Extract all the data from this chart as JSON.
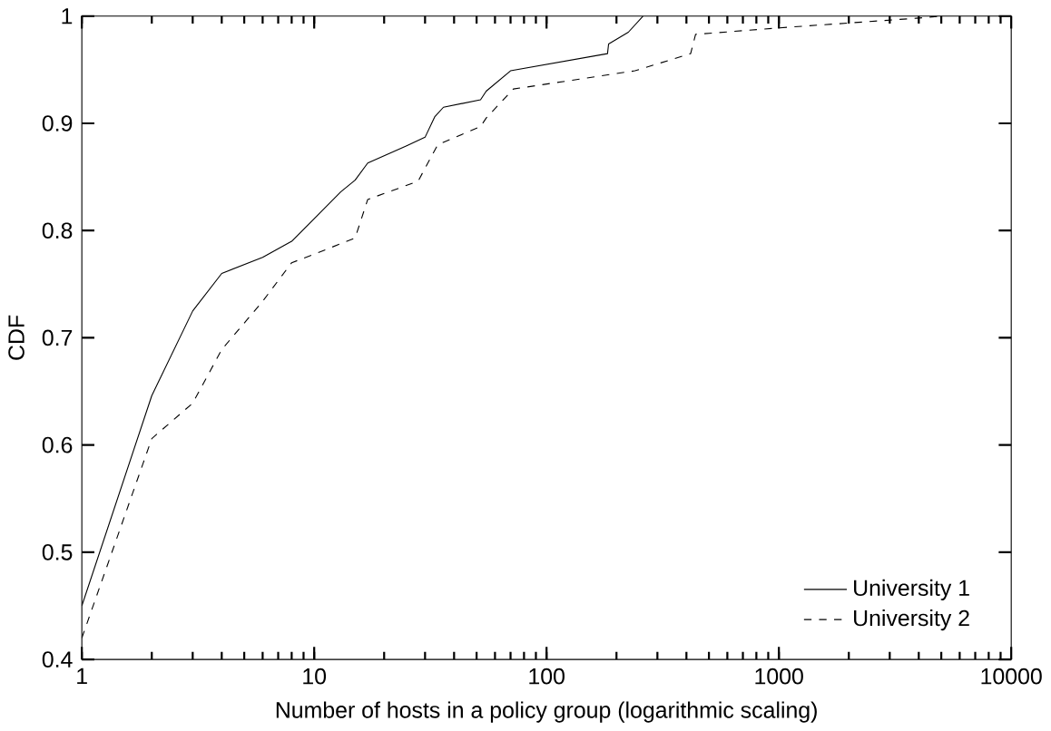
{
  "chart_data": {
    "type": "line",
    "xlabel": "Number of hosts in a policy group (logarithmic scaling)",
    "ylabel": "CDF",
    "log": "x",
    "xlim": [
      1,
      10000
    ],
    "ylim": [
      0.4,
      1
    ],
    "xticks": [
      1,
      10,
      100,
      1000,
      10000
    ],
    "yticks": [
      0.4,
      0.5,
      0.6,
      0.7,
      0.8,
      0.9,
      1
    ],
    "legend": "bottom right",
    "grid": false,
    "series": [
      {
        "name": "University 1",
        "color": "#000000",
        "line_style": "solid",
        "x": [
          1,
          2,
          3,
          4,
          6,
          8,
          10,
          13,
          15,
          17,
          25,
          30,
          33,
          36,
          52,
          55,
          70,
          183,
          185,
          225,
          260
        ],
        "values": [
          0.45,
          0.646,
          0.725,
          0.76,
          0.775,
          0.79,
          0.811,
          0.836,
          0.847,
          0.863,
          0.879,
          0.887,
          0.906,
          0.915,
          0.922,
          0.93,
          0.949,
          0.965,
          0.974,
          0.985,
          1.0
        ]
      },
      {
        "name": "University 2",
        "color": "#000000",
        "line_style": "dashed",
        "x": [
          1,
          2,
          3,
          4,
          6,
          8,
          10,
          15,
          17,
          28,
          34,
          52,
          55,
          72,
          240,
          417,
          438,
          1000,
          3900,
          5000
        ],
        "values": [
          0.42,
          0.606,
          0.639,
          0.689,
          0.734,
          0.77,
          0.778,
          0.793,
          0.829,
          0.846,
          0.88,
          0.897,
          0.905,
          0.932,
          0.949,
          0.965,
          0.983,
          0.989,
          0.998,
          1.0
        ]
      }
    ]
  }
}
